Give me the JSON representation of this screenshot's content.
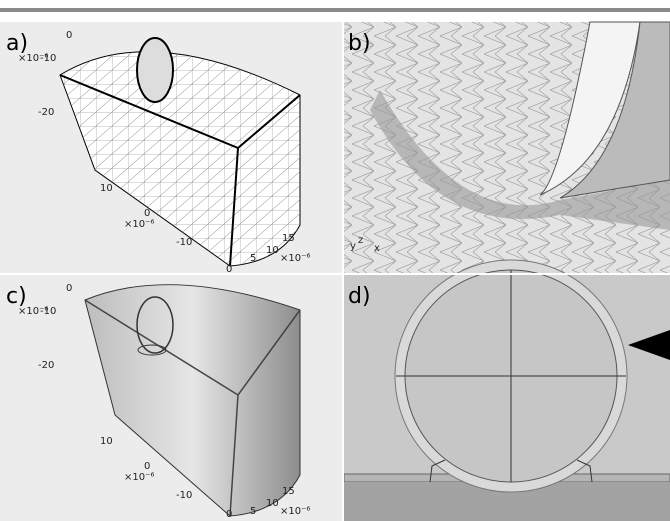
{
  "panels": [
    {
      "label": "a)",
      "ticks": [
        "0",
        "×10⁻⁶",
        "-10",
        "-20",
        "10",
        "0",
        "×10⁻⁶",
        "-10",
        "15",
        "10",
        "5",
        "×10⁻⁶",
        "0"
      ]
    },
    {
      "label": "b)",
      "ticks": [
        "y",
        "z",
        "x"
      ]
    },
    {
      "label": "c)",
      "ticks": [
        "0",
        "×10⁻⁶",
        "-10",
        "-20",
        "10",
        "0",
        "×10⁻⁶",
        "-10",
        "15",
        "10",
        "5",
        "×10⁻⁶",
        "0"
      ]
    },
    {
      "label": "d)",
      "ticks": []
    }
  ]
}
